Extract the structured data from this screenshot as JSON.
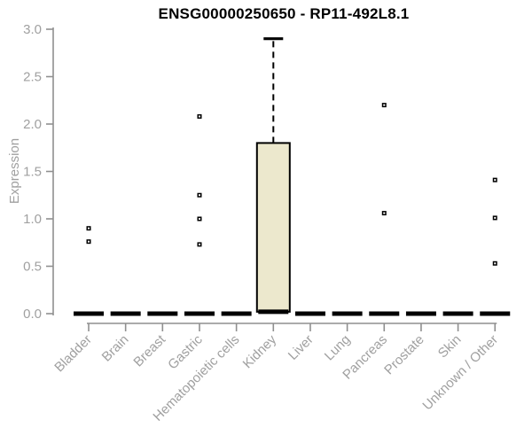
{
  "chart_data": {
    "type": "boxplot",
    "title": "ENSG00000250650 - RP11-492L8.1",
    "ylabel": "Expression",
    "xlabel": "",
    "ylim": [
      0,
      3
    ],
    "yticks": [
      0.0,
      0.5,
      1.0,
      1.5,
      2.0,
      2.5,
      3.0
    ],
    "grid": false,
    "legend": false,
    "categories": [
      "Bladder",
      "Brain",
      "Breast",
      "Gastric",
      "Hematopoietic cells",
      "Kidney",
      "Liver",
      "Lung",
      "Pancreas",
      "Prostate",
      "Skin",
      "Unknown / Other"
    ],
    "series": [
      {
        "category": "Bladder",
        "median": 0.0,
        "q1": 0.0,
        "q3": 0.0,
        "whisker_low": 0.0,
        "whisker_high": 0.0,
        "outliers": [
          0.9,
          0.76
        ]
      },
      {
        "category": "Brain",
        "median": 0.0,
        "q1": 0.0,
        "q3": 0.0,
        "whisker_low": 0.0,
        "whisker_high": 0.0,
        "outliers": []
      },
      {
        "category": "Breast",
        "median": 0.0,
        "q1": 0.0,
        "q3": 0.0,
        "whisker_low": 0.0,
        "whisker_high": 0.0,
        "outliers": []
      },
      {
        "category": "Gastric",
        "median": 0.0,
        "q1": 0.0,
        "q3": 0.0,
        "whisker_low": 0.0,
        "whisker_high": 0.0,
        "outliers": [
          2.08,
          1.25,
          1.0,
          0.73
        ]
      },
      {
        "category": "Hematopoietic cells",
        "median": 0.0,
        "q1": 0.0,
        "q3": 0.0,
        "whisker_low": 0.0,
        "whisker_high": 0.0,
        "outliers": []
      },
      {
        "category": "Kidney",
        "median": 0.02,
        "q1": 0.02,
        "q3": 1.8,
        "whisker_low": 0.0,
        "whisker_high": 2.9,
        "outliers": []
      },
      {
        "category": "Liver",
        "median": 0.0,
        "q1": 0.0,
        "q3": 0.0,
        "whisker_low": 0.0,
        "whisker_high": 0.0,
        "outliers": []
      },
      {
        "category": "Lung",
        "median": 0.0,
        "q1": 0.0,
        "q3": 0.0,
        "whisker_low": 0.0,
        "whisker_high": 0.0,
        "outliers": []
      },
      {
        "category": "Pancreas",
        "median": 0.0,
        "q1": 0.0,
        "q3": 0.0,
        "whisker_low": 0.0,
        "whisker_high": 0.0,
        "outliers": [
          2.2,
          1.06
        ]
      },
      {
        "category": "Prostate",
        "median": 0.0,
        "q1": 0.0,
        "q3": 0.0,
        "whisker_low": 0.0,
        "whisker_high": 0.0,
        "outliers": []
      },
      {
        "category": "Skin",
        "median": 0.0,
        "q1": 0.0,
        "q3": 0.0,
        "whisker_low": 0.0,
        "whisker_high": 0.0,
        "outliers": []
      },
      {
        "category": "Unknown / Other",
        "median": 0.0,
        "q1": 0.0,
        "q3": 0.0,
        "whisker_low": 0.0,
        "whisker_high": 0.0,
        "outliers": [
          1.41,
          1.01,
          0.53
        ]
      }
    ],
    "colors": {
      "background": "#ffffff",
      "title": "#000000",
      "axis_line": "#8f8f8f",
      "tick_label": "#a0a0a0",
      "box_fill": "#ece8cd",
      "box_border": "#000000",
      "median": "#000000",
      "whisker": "#000000",
      "outlier": "#000000",
      "outlier_center": "#ffffff"
    }
  }
}
